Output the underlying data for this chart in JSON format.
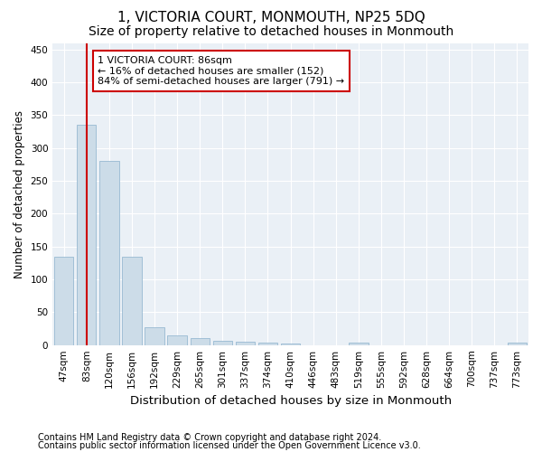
{
  "title": "1, VICTORIA COURT, MONMOUTH, NP25 5DQ",
  "subtitle": "Size of property relative to detached houses in Monmouth",
  "xlabel": "Distribution of detached houses by size in Monmouth",
  "ylabel": "Number of detached properties",
  "bar_color": "#ccdce8",
  "bar_edge_color": "#8ab0cc",
  "vline_color": "#cc0000",
  "vline_x": 1,
  "annotation_text": "1 VICTORIA COURT: 86sqm\n← 16% of detached houses are smaller (152)\n84% of semi-detached houses are larger (791) →",
  "annotation_box_color": "#cc0000",
  "bins": [
    "47sqm",
    "83sqm",
    "120sqm",
    "156sqm",
    "192sqm",
    "229sqm",
    "265sqm",
    "301sqm",
    "337sqm",
    "374sqm",
    "410sqm",
    "446sqm",
    "483sqm",
    "519sqm",
    "555sqm",
    "592sqm",
    "628sqm",
    "664sqm",
    "700sqm",
    "737sqm",
    "773sqm"
  ],
  "values": [
    135,
    335,
    280,
    135,
    27,
    15,
    10,
    6,
    5,
    4,
    3,
    0,
    0,
    4,
    0,
    0,
    0,
    0,
    0,
    0,
    4
  ],
  "ylim": [
    0,
    460
  ],
  "yticks": [
    0,
    50,
    100,
    150,
    200,
    250,
    300,
    350,
    400,
    450
  ],
  "background_color": "#eaf0f6",
  "footer1": "Contains HM Land Registry data © Crown copyright and database right 2024.",
  "footer2": "Contains public sector information licensed under the Open Government Licence v3.0.",
  "title_fontsize": 11,
  "subtitle_fontsize": 10,
  "xlabel_fontsize": 9.5,
  "ylabel_fontsize": 8.5,
  "tick_fontsize": 7.5,
  "annotation_fontsize": 8,
  "footer_fontsize": 7
}
